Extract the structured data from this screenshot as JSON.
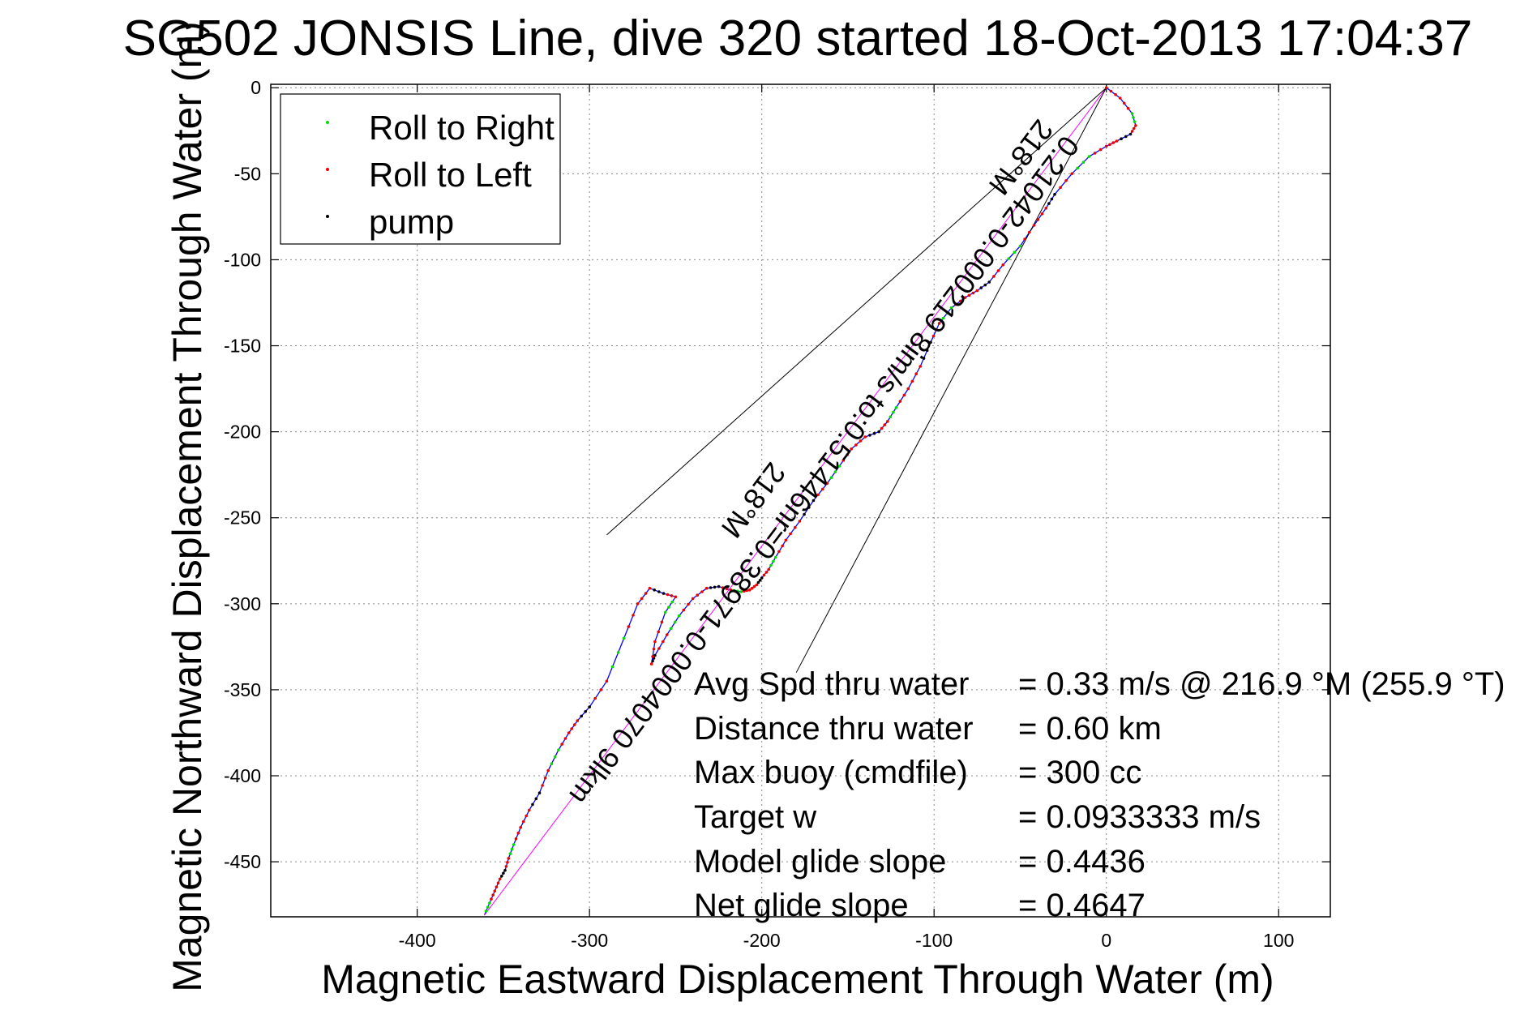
{
  "chart_data": {
    "type": "line",
    "title": "SG502 JONSIS Line, dive 320 started 18-Oct-2013 17:04:37",
    "xlabel": "Magnetic Eastward Displacement Through Water (m)",
    "ylabel": "Magnetic Northward Displacement Through Water (m)",
    "xlim": [
      -485,
      130
    ],
    "ylim": [
      -482,
      2
    ],
    "xticks": [
      -400,
      -300,
      -200,
      -100,
      0,
      100
    ],
    "xtick_labels": [
      "-400",
      "-300",
      "-200",
      "-100",
      "0",
      "100"
    ],
    "yticks": [
      0,
      -50,
      -100,
      -150,
      -200,
      -250,
      -300,
      -350,
      -400,
      -450
    ],
    "ytick_labels": [
      "0",
      "-50",
      "-100",
      "-150",
      "-200",
      "-250",
      "-300",
      "-350",
      "-400",
      "-450"
    ],
    "grid": true,
    "legend_placement": "top-left",
    "legend": [
      {
        "label": "Roll to Right",
        "color": "#00dd00"
      },
      {
        "label": "Roll to Left",
        "color": "#ee0000"
      },
      {
        "label": "pump",
        "color": "#000000"
      }
    ],
    "colors": {
      "track": "#0000ff",
      "direct": "#ff00ff",
      "wedge": "#000000"
    },
    "series": [
      {
        "color": "#0000ff",
        "x": [
          0,
          8,
          15,
          17,
          14,
          6,
          0,
          -10,
          -20,
          -30,
          -35,
          -42,
          -50,
          -60,
          -68,
          -75,
          -82,
          -90,
          -97,
          -102,
          -108,
          -115,
          -122,
          -127,
          -132,
          -140,
          -148,
          -155,
          -162,
          -170,
          -178,
          -186,
          -192,
          -196,
          -200,
          -203,
          -207,
          -212,
          -218,
          -225,
          -232,
          -240,
          -248,
          -255,
          -262,
          -264,
          -262,
          -256,
          -250,
          -257,
          -265,
          -272,
          -280,
          -290,
          -300,
          -307,
          -312,
          -318,
          -324,
          -329,
          -335,
          -340,
          -344,
          -347,
          -349,
          -352,
          -355,
          -358,
          -361
        ],
        "y": [
          0,
          -6,
          -15,
          -22,
          -27,
          -31,
          -34,
          -40,
          -50,
          -62,
          -70,
          -80,
          -92,
          -103,
          -113,
          -118,
          -122,
          -128,
          -137,
          -148,
          -162,
          -175,
          -186,
          -194,
          -200,
          -203,
          -210,
          -220,
          -230,
          -240,
          -252,
          -263,
          -273,
          -280,
          -285,
          -289,
          -292,
          -293,
          -292,
          -290,
          -291,
          -297,
          -307,
          -318,
          -330,
          -335,
          -322,
          -305,
          -296,
          -294,
          -291,
          -300,
          -320,
          -345,
          -360,
          -368,
          -375,
          -385,
          -397,
          -410,
          -420,
          -430,
          -440,
          -448,
          -455,
          -460,
          -467,
          -474,
          -481
        ]
      },
      {
        "color": "#ff00ff",
        "x": [
          0,
          -361
        ],
        "y": [
          0,
          -481
        ]
      },
      {
        "color": "#000000",
        "x": [
          -290,
          0,
          -180
        ],
        "y": [
          -260,
          0,
          -340
        ]
      }
    ],
    "annotations": [
      {
        "text": "Avg Spd thru water",
        "value": "=  0.33 m/s @ 216.9 °M (255.9 °T)"
      },
      {
        "text": "Distance thru water",
        "value": "=  0.60 km"
      },
      {
        "text": "Max buoy (cmdfile)",
        "value": "= 300 cc"
      },
      {
        "text": "Target w",
        "value": "= 0.0933333 m/s"
      },
      {
        "text": "Model glide slope",
        "value": "= 0.4436"
      },
      {
        "text": "Net glide slope",
        "value": "= 0.4647"
      }
    ],
    "overlay_labels": [
      "0.21042-0.000219 8im/s to:0.51446nr=0.38971-0.0004070 9lkm",
      "218°M",
      "218°M"
    ]
  }
}
